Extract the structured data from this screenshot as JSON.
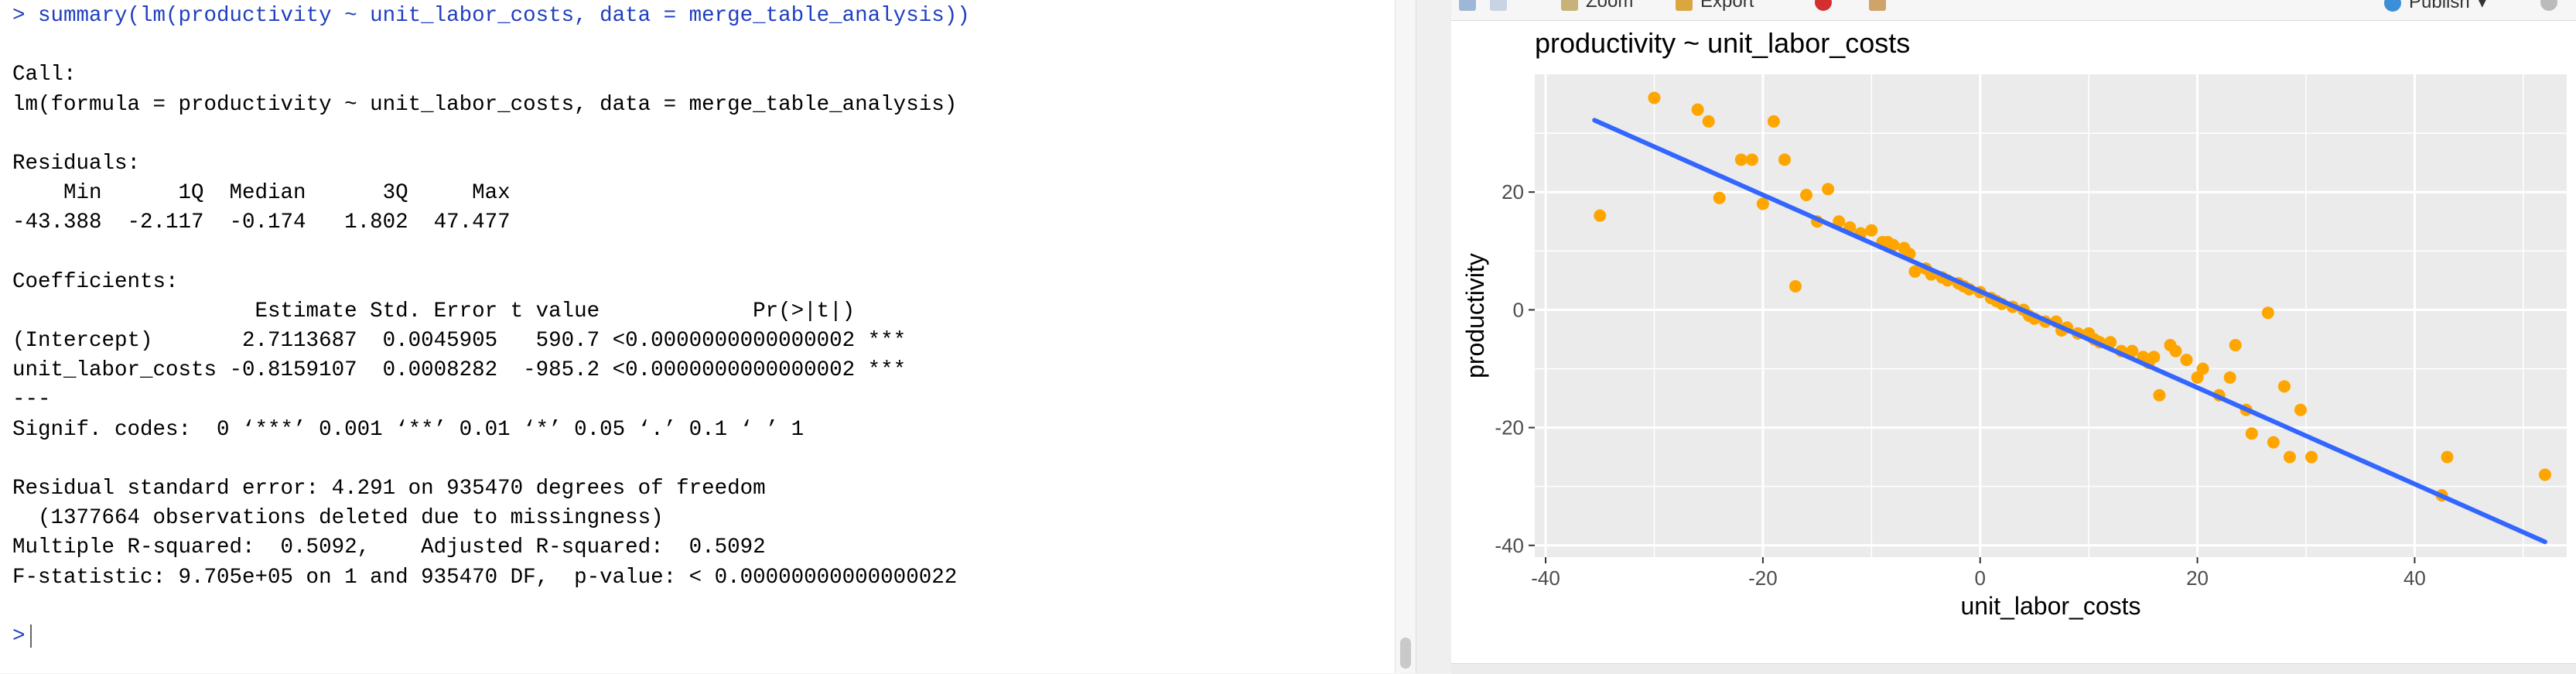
{
  "console": {
    "lines": [
      "> summary(lm(productivity ~ unit_labor_costs, data = merge_table_analysis))",
      "",
      "Call:",
      "lm(formula = productivity ~ unit_labor_costs, data = merge_table_analysis)",
      "",
      "Residuals:",
      "    Min      1Q  Median      3Q     Max ",
      "-43.388  -2.117  -0.174   1.802  47.477 ",
      "",
      "Coefficients:",
      "                   Estimate Std. Error t value            Pr(>|t|)    ",
      "(Intercept)       2.7113687  0.0045905   590.7 <0.0000000000000002 ***",
      "unit_labor_costs -0.8159107  0.0008282  -985.2 <0.0000000000000002 ***",
      "---",
      "Signif. codes:  0 ‘***’ 0.001 ‘**’ 0.01 ‘*’ 0.05 ‘.’ 0.1 ‘ ’ 1",
      "",
      "Residual standard error: 4.291 on 935470 degrees of freedom",
      "  (1377664 observations deleted due to missingness)",
      "Multiple R-squared:  0.5092,\tAdjusted R-squared:  0.5092 ",
      "F-statistic: 9.705e+05 on 1 and 935470 DF,  p-value: < 0.00000000000000022",
      ""
    ],
    "prompt": ">"
  },
  "toolbar": {
    "zoom_label": "Zoom",
    "export_label": "Export",
    "publish_label": "Publish"
  },
  "chart_data": {
    "type": "scatter",
    "title": "productivity ~ unit_labor_costs",
    "xlabel": "unit_labor_costs",
    "ylabel": "productivity",
    "xlim": [
      -41,
      54
    ],
    "ylim": [
      -42,
      40
    ],
    "xticks": [
      -40,
      -20,
      0,
      20,
      40
    ],
    "yticks": [
      -40,
      -20,
      0,
      20
    ],
    "grid": true,
    "legend": "none",
    "colors": {
      "points": "#FFA500",
      "line": "#3366FF",
      "panel": "#EBEBEB",
      "gridline": "#FFFFFF"
    },
    "regression_line": {
      "x": [
        -35.5,
        52
      ],
      "y": [
        32.2,
        -39.4
      ]
    },
    "points": [
      [
        -35,
        16
      ],
      [
        -30,
        36
      ],
      [
        -26,
        34
      ],
      [
        -25,
        32
      ],
      [
        -24,
        19
      ],
      [
        -22,
        25.5
      ],
      [
        -21,
        25.5
      ],
      [
        -20,
        18
      ],
      [
        -19,
        32
      ],
      [
        -18,
        25.5
      ],
      [
        -17,
        4
      ],
      [
        -16,
        19.5
      ],
      [
        -15,
        15
      ],
      [
        -14,
        20.5
      ],
      [
        -13,
        15
      ],
      [
        -12,
        14
      ],
      [
        -11,
        13
      ],
      [
        -10,
        13.5
      ],
      [
        -9,
        11.5
      ],
      [
        -8.5,
        11.5
      ],
      [
        -8,
        11
      ],
      [
        -7,
        10.5
      ],
      [
        -6.5,
        9.5
      ],
      [
        -6,
        6.5
      ],
      [
        -5,
        7
      ],
      [
        -4.5,
        6
      ],
      [
        -3.5,
        5.5
      ],
      [
        -3,
        5
      ],
      [
        -2,
        4.5
      ],
      [
        -1.5,
        4
      ],
      [
        -1,
        3.5
      ],
      [
        0,
        3
      ],
      [
        1,
        2
      ],
      [
        1.5,
        1.5
      ],
      [
        2,
        1
      ],
      [
        3,
        0.5
      ],
      [
        4,
        0
      ],
      [
        4.5,
        -1
      ],
      [
        5,
        -1.5
      ],
      [
        6,
        -2
      ],
      [
        7,
        -2
      ],
      [
        7.5,
        -3.5
      ],
      [
        8,
        -3
      ],
      [
        9,
        -4
      ],
      [
        10,
        -4
      ],
      [
        10.5,
        -5
      ],
      [
        11,
        -5.5
      ],
      [
        12,
        -5.5
      ],
      [
        13,
        -7
      ],
      [
        14,
        -7
      ],
      [
        15,
        -8
      ],
      [
        15.5,
        -9
      ],
      [
        16,
        -8
      ],
      [
        16.5,
        -14.5
      ],
      [
        17.5,
        -6
      ],
      [
        18,
        -7
      ],
      [
        19,
        -8.5
      ],
      [
        20,
        -11.5
      ],
      [
        20.5,
        -10
      ],
      [
        22,
        -14.5
      ],
      [
        23,
        -11.5
      ],
      [
        23.5,
        -6
      ],
      [
        24.5,
        -17
      ],
      [
        25,
        -21
      ],
      [
        26.5,
        -0.5
      ],
      [
        27,
        -22.5
      ],
      [
        28,
        -13
      ],
      [
        28.5,
        -25
      ],
      [
        29.5,
        -17
      ],
      [
        30.5,
        -25
      ],
      [
        42.5,
        -31.5
      ],
      [
        43,
        -25
      ],
      [
        52,
        -28
      ]
    ]
  }
}
